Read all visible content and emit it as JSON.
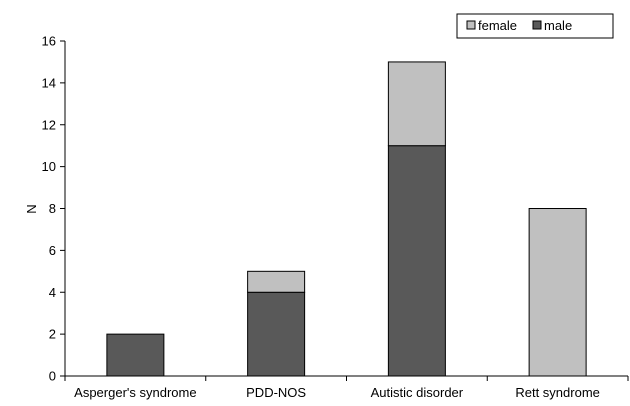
{
  "chart_data": {
    "type": "bar",
    "stacked": true,
    "categories": [
      "Asperger's syndrome",
      "PDD-NOS",
      "Autistic disorder",
      "Rett syndrome"
    ],
    "series": [
      {
        "name": "male",
        "values": [
          2,
          4,
          11,
          0
        ],
        "color": "#595959"
      },
      {
        "name": "female",
        "values": [
          0,
          1,
          4,
          8
        ],
        "color": "#c0c0c0"
      }
    ],
    "legend_order": [
      "female",
      "male"
    ],
    "ylabel": "N",
    "xlabel": "",
    "ylim": [
      0,
      16
    ],
    "yticks": [
      0,
      2,
      4,
      6,
      8,
      10,
      12,
      14,
      16
    ],
    "grid": false,
    "legend_position": "top-right"
  }
}
